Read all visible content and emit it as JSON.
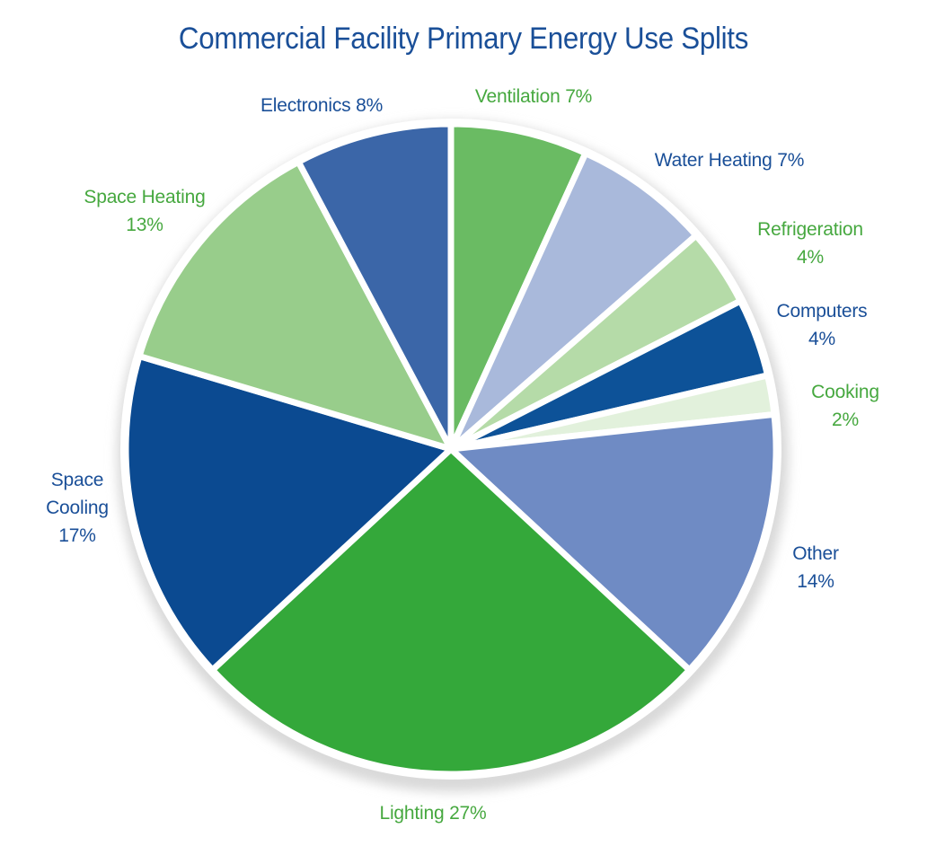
{
  "chart_data": {
    "type": "pie",
    "title": "Commercial Facility Primary Energy Use Splits",
    "slices": [
      {
        "name": "Ventilation",
        "percent_label": "7%",
        "value": 7,
        "color": "#6abb63",
        "label_color": "#46a83f"
      },
      {
        "name": "Water Heating",
        "percent_label": "7%",
        "value": 7,
        "color": "#a9b9db",
        "label_color": "#1a4f98"
      },
      {
        "name": "Refrigeration",
        "percent_label": "4%",
        "value": 4,
        "color": "#b5dba8",
        "label_color": "#46a83f"
      },
      {
        "name": "Computers",
        "percent_label": "4%",
        "value": 4,
        "color": "#0d5298",
        "label_color": "#1a4f98"
      },
      {
        "name": "Cooking",
        "percent_label": "2%",
        "value": 2,
        "color": "#e2f1dc",
        "label_color": "#46a83f"
      },
      {
        "name": "Other",
        "percent_label": "14%",
        "value": 14,
        "color": "#6f8bc4",
        "label_color": "#1a4f98"
      },
      {
        "name": "Lighting",
        "percent_label": "27%",
        "value": 27,
        "color": "#34a83a",
        "label_color": "#46a83f"
      },
      {
        "name": "Space Cooling",
        "percent_label": "17%",
        "value": 17,
        "color": "#0b4a91",
        "label_color": "#1a4f98"
      },
      {
        "name": "Space Heating",
        "percent_label": "13%",
        "value": 13,
        "color": "#98cd8b",
        "label_color": "#46a83f"
      },
      {
        "name": "Electronics",
        "percent_label": "8%",
        "value": 8,
        "color": "#3b66a8",
        "label_color": "#1a4f98"
      }
    ],
    "labels": [
      {
        "lines": [
          "Electronics 8%"
        ]
      },
      {
        "lines": [
          "Ventilation 7%"
        ]
      },
      {
        "lines": [
          "Water Heating 7%"
        ]
      },
      {
        "lines": [
          "Refrigeration",
          "4%"
        ]
      },
      {
        "lines": [
          "Computers",
          "4%"
        ]
      },
      {
        "lines": [
          "Cooking",
          "2%"
        ]
      },
      {
        "lines": [
          "Other",
          "14%"
        ]
      },
      {
        "lines": [
          "Lighting 27%"
        ]
      },
      {
        "lines": [
          "Space",
          "Cooling",
          "17%"
        ]
      },
      {
        "lines": [
          "Space Heating",
          "13%"
        ]
      }
    ]
  }
}
